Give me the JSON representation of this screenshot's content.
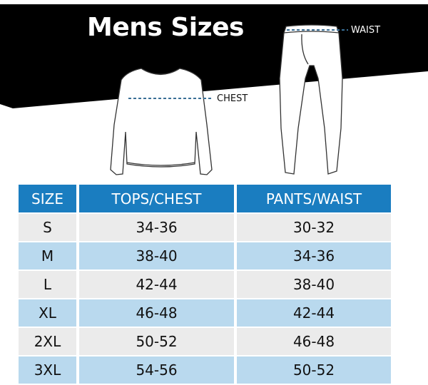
{
  "title": "Mens Sizes",
  "labels": {
    "chest": "CHEST",
    "waist": "WAIST"
  },
  "colors": {
    "header": "#1a7dc0",
    "row_light": "#ebebeb",
    "row_blue": "#b9d9ee",
    "banner": "#000000",
    "measure_line": "#3a6f96"
  },
  "table": {
    "headers": [
      "SIZE",
      "TOPS/CHEST",
      "PANTS/WAIST"
    ],
    "rows": [
      [
        "S",
        "34-36",
        "30-32"
      ],
      [
        "M",
        "38-40",
        "34-36"
      ],
      [
        "L",
        "42-44",
        "38-40"
      ],
      [
        "XL",
        "46-48",
        "42-44"
      ],
      [
        "2XL",
        "50-52",
        "46-48"
      ],
      [
        "3XL",
        "54-56",
        "50-52"
      ]
    ]
  }
}
